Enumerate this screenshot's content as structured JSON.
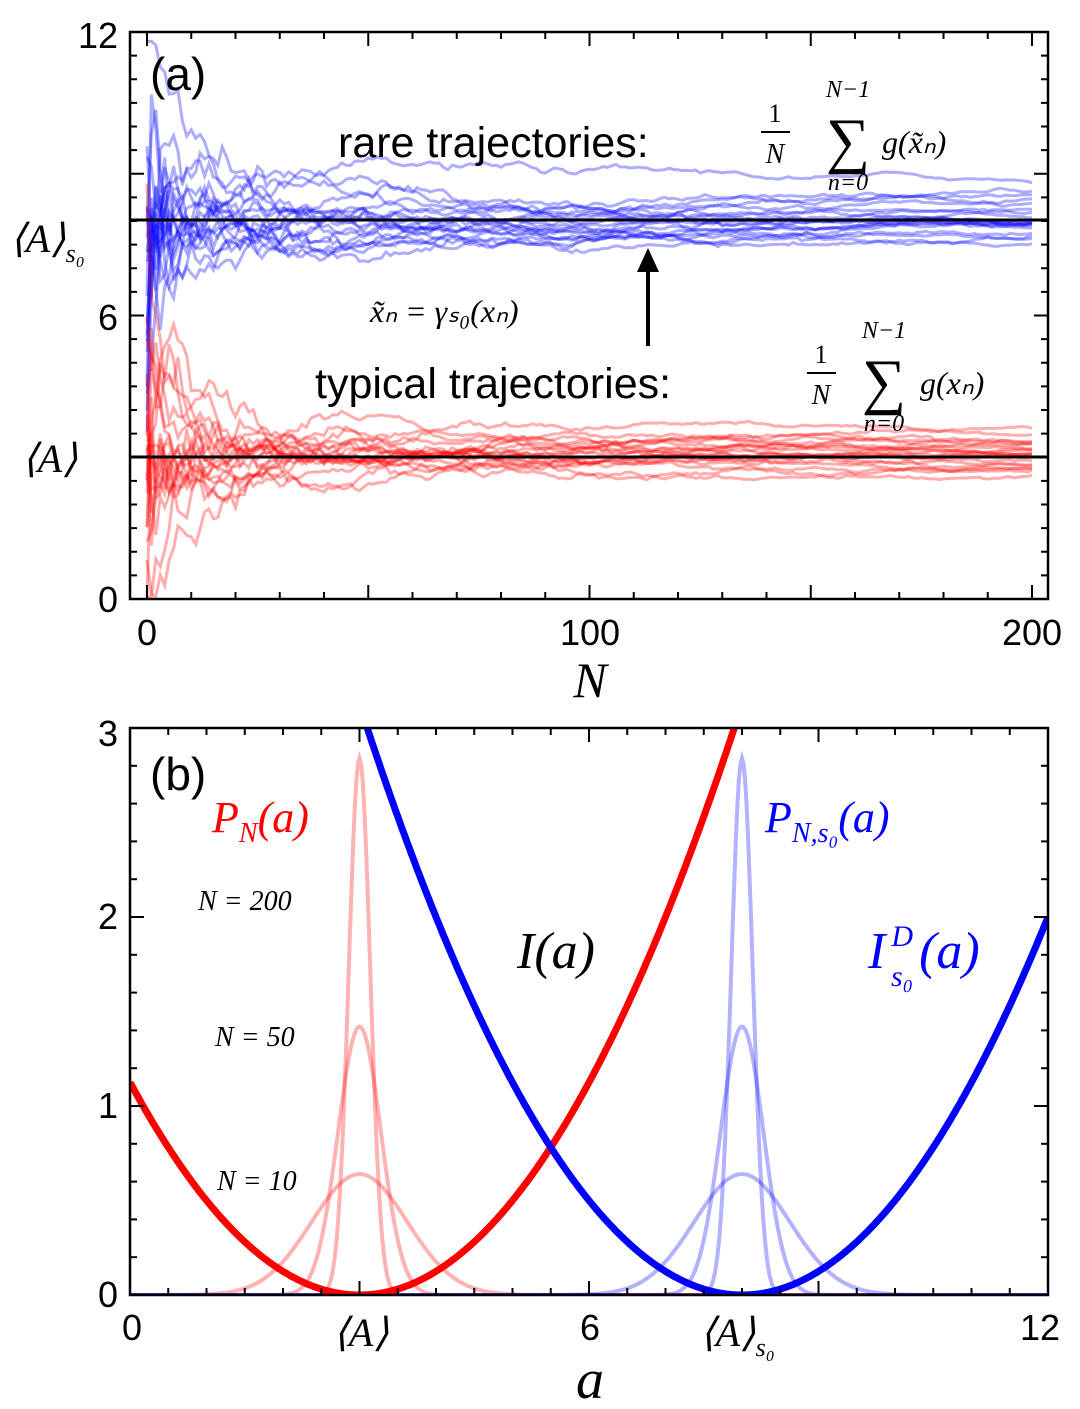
{
  "chart_data": [
    {
      "panel": "(a)",
      "type": "line",
      "xlabel": "N",
      "xlim": [
        0,
        200
      ],
      "ylim": [
        0,
        12
      ],
      "xticks": [
        "0",
        "100",
        "200"
      ],
      "yticks": [
        "0",
        "6",
        "12"
      ],
      "ytick_symbols": {
        "mean": {
          "label": "⟨A⟩",
          "value": 3.0
        },
        "mean_s0": {
          "label": "⟨A⟩",
          "subscript": "s₀",
          "value": 8.0
        }
      },
      "annotations": {
        "rare": "rare trajectories:",
        "typical": "typical trajectories:",
        "map": "x̃ₙ = γₛ₀(xₙ)",
        "frac_num": "1",
        "frac_den": "N",
        "sum_upper": "N−1",
        "sum_lower": "n=0",
        "sum_symbol": "∑",
        "rare_g": "g(x̃ₙ)",
        "typical_g": "g(xₙ)"
      },
      "series": [
        {
          "name": "rare trajectories",
          "color": "#0000ff",
          "count": 20,
          "mean": 8.0,
          "start_spread": 2.8
        },
        {
          "name": "typical trajectories",
          "color": "#ff0000",
          "count": 20,
          "mean": 3.0,
          "start_spread": 2.6
        }
      ],
      "hlines": [
        {
          "y": 8.0,
          "color": "#000000"
        },
        {
          "y": 3.0,
          "color": "#000000"
        }
      ]
    },
    {
      "panel": "(b)",
      "type": "line",
      "xlabel": "a",
      "xlim": [
        0,
        12
      ],
      "ylim": [
        0,
        3
      ],
      "xticks": [
        "0",
        "6",
        "12"
      ],
      "yticks": [
        "0",
        "1",
        "2",
        "3"
      ],
      "xtick_symbols": {
        "mean": {
          "label": "⟨A⟩",
          "value": 3.0
        },
        "mean_s0": {
          "label": "⟨A⟩",
          "subscript": "s₀",
          "value": 8.0
        }
      },
      "series": [
        {
          "name": "I(a)",
          "color": "#ff0000",
          "center": 3.0,
          "curvature": 0.125
        },
        {
          "name": "I_s0^D(a)",
          "color": "#0000ff",
          "center": 8.0,
          "curvature": 0.125
        },
        {
          "name": "P_N(a)",
          "color": "#ff0000",
          "center": 3.0,
          "N": [
            10,
            50,
            200
          ],
          "peaks": [
            0.64,
            1.42,
            2.84
          ]
        },
        {
          "name": "P_N,s0(a)",
          "color": "#0000ff",
          "center": 8.0,
          "N": [
            10,
            50,
            200
          ],
          "peaks": [
            0.64,
            1.42,
            2.84
          ]
        }
      ],
      "labels": {
        "panel": "(b)",
        "PN": "P",
        "PN_sub": "N",
        "PN_arg": "(a)",
        "PNs0_sub": "N,s₀",
        "I": "I(a)",
        "ID_sup": "D",
        "ID_sub": "s₀",
        "ID_arg": "(a)",
        "I_letter": "I",
        "N200": "N = 200",
        "N50": "N = 50",
        "N10": "N = 10"
      }
    }
  ]
}
